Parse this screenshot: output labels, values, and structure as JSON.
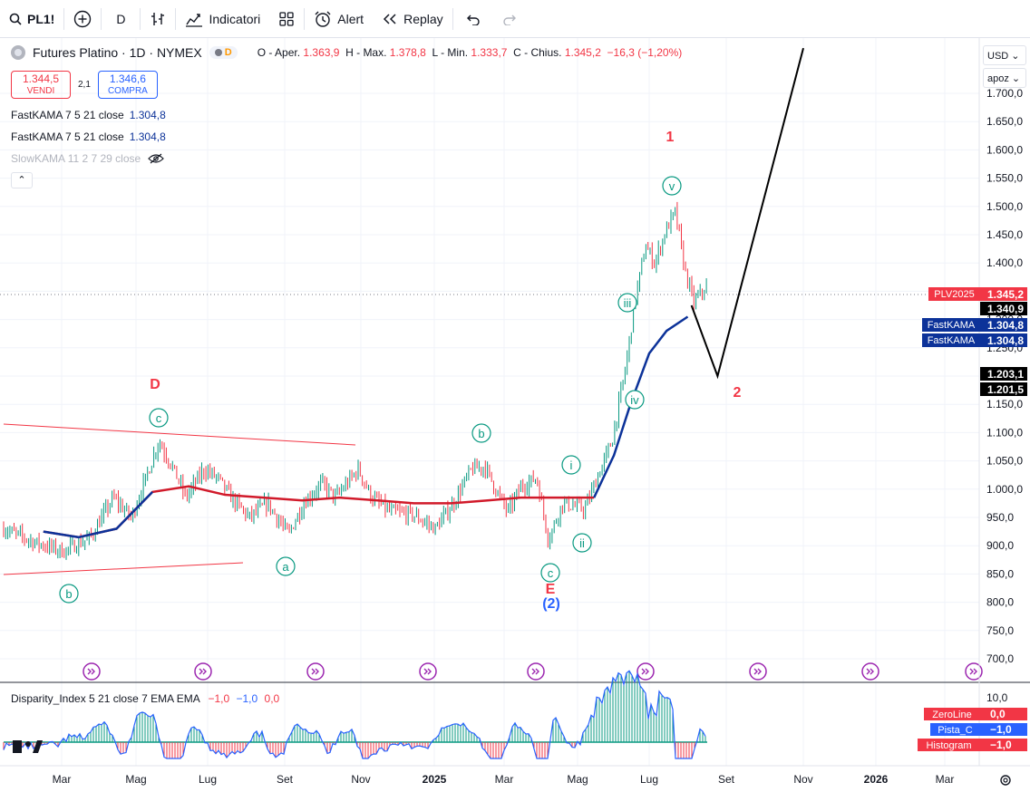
{
  "toolbar": {
    "symbol": "PL1!",
    "interval": "D",
    "indicators_label": "Indicatori",
    "alert_label": "Alert",
    "replay_label": "Replay"
  },
  "legend": {
    "title": "Futures Platino · 1D · NYMEX",
    "open_label": "O - Aper.",
    "open": "1.363,9",
    "high_label": "H - Max.",
    "high": "1.378,8",
    "low_label": "L - Min.",
    "low": "1.333,7",
    "close_label": "C - Chius.",
    "close": "1.345,2",
    "change": "−16,3 (−1,20%)"
  },
  "trade": {
    "sell_price": "1.344,5",
    "sell_label": "VENDI",
    "spread": "2,1",
    "buy_price": "1.346,6",
    "buy_label": "COMPRA"
  },
  "indicators": [
    {
      "name": "FastKAMA 7 5 21 close",
      "value": "1.304,8"
    },
    {
      "name": "FastKAMA 7 5 21 close",
      "value": "1.304,8"
    },
    {
      "name": "SlowKAMA 11 2 7 29 close",
      "value": ""
    }
  ],
  "price_axis": {
    "currency": "USD",
    "scale_mode": "apoz",
    "ticks": [
      "1.700,0",
      "1.650,0",
      "1.600,0",
      "1.550,0",
      "1.500,0",
      "1.450,0",
      "1.400,0",
      "1.350,0",
      "1.300,0",
      "1.250,0",
      "1.200,0",
      "1.150,0",
      "1.100,0",
      "1.050,0",
      "1.000,0",
      "950,0",
      "900,0",
      "850,0",
      "800,0",
      "750,0",
      "700,0"
    ],
    "tags": [
      {
        "label": "PLV2025",
        "value": "1.345,2",
        "color": "#f23645"
      },
      {
        "label": "",
        "value": "1.340,9",
        "color": "#000000"
      },
      {
        "label": "FastKAMA",
        "value": "1.304,8",
        "color": "#0c3299"
      },
      {
        "label": "FastKAMA",
        "value": "1.304,8",
        "color": "#0c3299"
      },
      {
        "label": "",
        "value": "1.203,1",
        "color": "#000000"
      },
      {
        "label": "",
        "value": "1.201,5",
        "color": "#000000"
      }
    ]
  },
  "time_axis": [
    "Mar",
    "Mag",
    "Lug",
    "Set",
    "Nov",
    "2025",
    "Mar",
    "Mag",
    "Lug",
    "Set",
    "Nov",
    "2026",
    "Mar"
  ],
  "wave_labels": [
    {
      "text": "D",
      "color": "#f23645"
    },
    {
      "text": "c",
      "color": "#089981"
    },
    {
      "text": "b",
      "color": "#089981"
    },
    {
      "text": "a",
      "color": "#089981"
    },
    {
      "text": "b",
      "color": "#089981"
    },
    {
      "text": "i",
      "color": "#089981"
    },
    {
      "text": "ii",
      "color": "#089981"
    },
    {
      "text": "c",
      "color": "#089981"
    },
    {
      "text": "E",
      "color": "#f23645"
    },
    {
      "text": "(2)",
      "color": "#2962ff"
    },
    {
      "text": "iii",
      "color": "#089981"
    },
    {
      "text": "iv",
      "color": "#089981"
    },
    {
      "text": "v",
      "color": "#089981"
    },
    {
      "text": "1",
      "color": "#f23645"
    },
    {
      "text": "2",
      "color": "#f23645"
    }
  ],
  "oscillator": {
    "title": "Disparity_Index 5 21 close 7 EMA EMA",
    "v1": "−1,0",
    "v2": "−1,0",
    "v3": "0,0",
    "axis_top": "10,0",
    "tags": [
      {
        "label": "ZeroLine",
        "value": "0,0",
        "color": "#f23645"
      },
      {
        "label": "Pista_C",
        "value": "−1,0",
        "color": "#2962ff"
      },
      {
        "label": "Histogram",
        "value": "−1,0",
        "color": "#f23645"
      }
    ]
  },
  "chart_data": {
    "type": "line",
    "title": "Futures Platino · 1D · NYMEX",
    "ylim": [
      700,
      1700
    ],
    "series": [
      {
        "name": "FastKAMA 7 5 21 close",
        "x": [
          "2024-02-15",
          "2024-03-15",
          "2024-04-15",
          "2024-05-15",
          "2024-06-15",
          "2024-07-15",
          "2024-08-15",
          "2024-09-15",
          "2024-10-15",
          "2024-11-15",
          "2024-12-15",
          "2025-01-15",
          "2025-02-15",
          "2025-03-15",
          "2025-04-15",
          "2025-05-15",
          "2025-06-01",
          "2025-06-15",
          "2025-07-01",
          "2025-07-15",
          "2025-08-01"
        ],
        "values": [
          925,
          915,
          930,
          995,
          1005,
          990,
          985,
          980,
          985,
          980,
          975,
          975,
          980,
          985,
          985,
          985,
          1060,
          1150,
          1240,
          1280,
          1305
        ]
      }
    ],
    "elliott_projection": {
      "x": [
        "2025-08-04",
        "2025-08-25",
        "2025-11-01"
      ],
      "values": [
        1325,
        1200,
        1780
      ]
    }
  }
}
